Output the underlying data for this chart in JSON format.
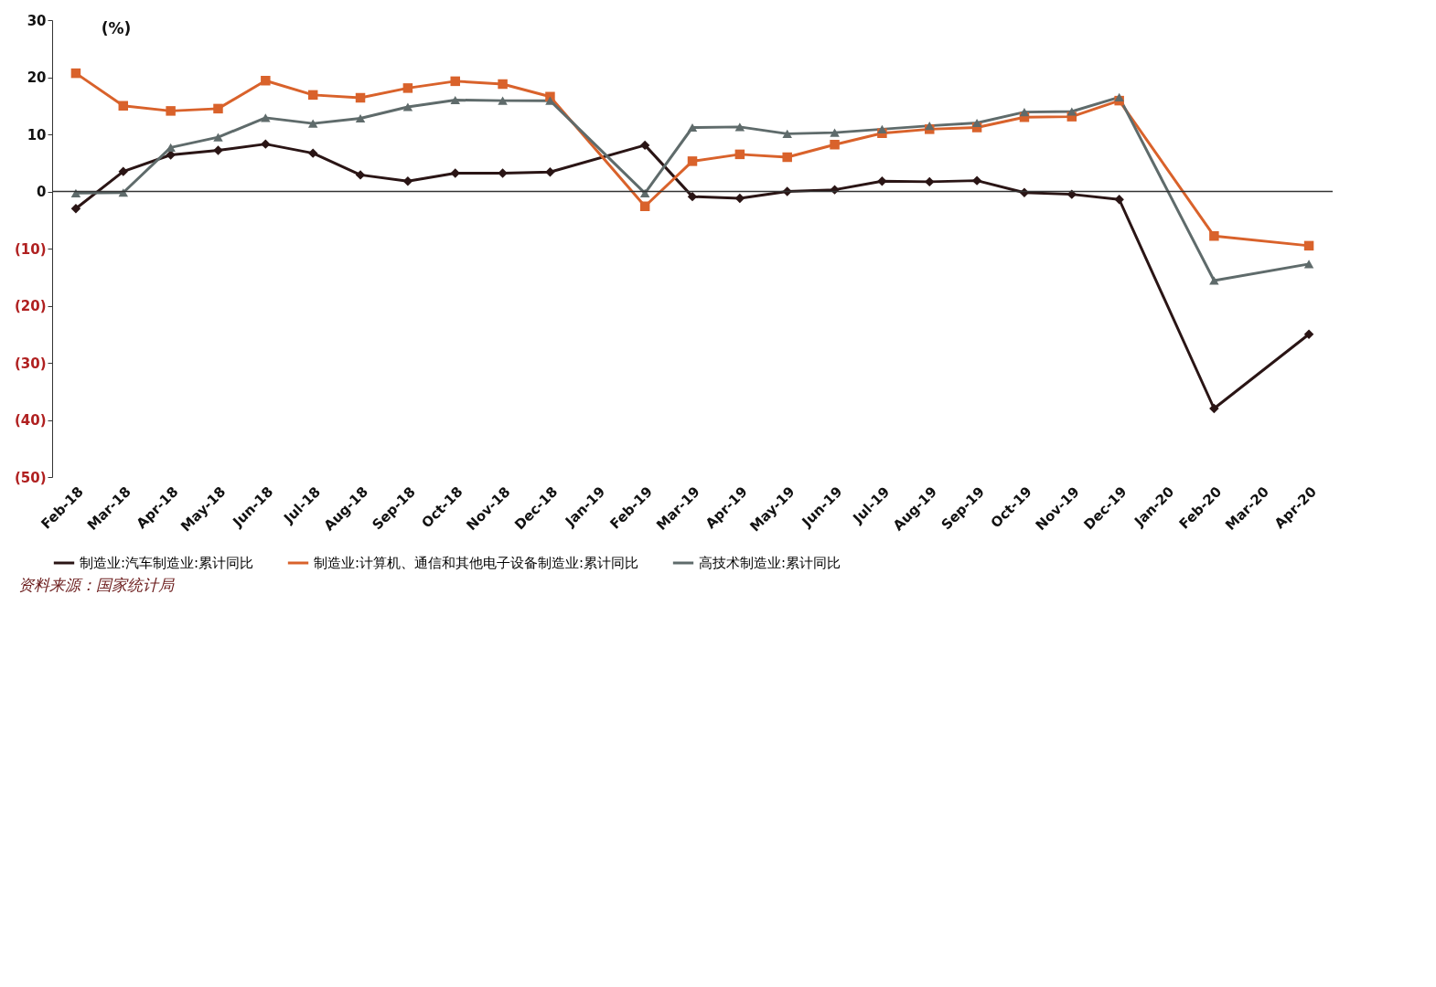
{
  "chart_data": {
    "type": "line",
    "ylabel": "(%)",
    "categories": [
      "Feb-18",
      "Mar-18",
      "Apr-18",
      "May-18",
      "Jun-18",
      "Jul-18",
      "Aug-18",
      "Sep-18",
      "Oct-18",
      "Nov-18",
      "Dec-18",
      "Jan-19",
      "Feb-19",
      "Mar-19",
      "Apr-19",
      "May-19",
      "Jun-19",
      "Jul-19",
      "Aug-19",
      "Sep-19",
      "Oct-19",
      "Nov-19",
      "Dec-19",
      "Jan-20",
      "Feb-20",
      "Mar-20",
      "Apr-20"
    ],
    "series": [
      {
        "name": "制造业:汽车制造业:累计同比",
        "color": "#2a1515",
        "marker": "diamond",
        "values": [
          -3,
          3.5,
          6.4,
          7.2,
          8.3,
          6.7,
          2.9,
          1.8,
          3.2,
          3.2,
          3.4,
          null,
          8.1,
          -0.9,
          -1.2,
          0,
          0.3,
          1.8,
          1.7,
          1.9,
          -0.2,
          -0.5,
          -1.4,
          null,
          -38,
          null,
          -25
        ]
      },
      {
        "name": "制造业:计算机、通信和其他电子设备制造业:累计同比",
        "color": "#d9622b",
        "marker": "square",
        "values": [
          20.7,
          15,
          14.1,
          14.5,
          19.4,
          16.9,
          16.4,
          18.1,
          19.3,
          18.8,
          16.6,
          null,
          -2.6,
          5.3,
          6.5,
          6,
          8.2,
          10.2,
          10.9,
          11.2,
          13,
          13.1,
          15.9,
          null,
          -7.8,
          null,
          -9.5
        ]
      },
      {
        "name": "高技术制造业:累计同比",
        "color": "#5f6b6b",
        "marker": "triangle",
        "values": [
          -0.3,
          -0.2,
          7.7,
          9.5,
          12.9,
          11.9,
          12.8,
          14.8,
          16,
          15.9,
          15.9,
          null,
          -0.3,
          11.2,
          11.3,
          10.1,
          10.3,
          10.9,
          11.5,
          12,
          13.9,
          14,
          16.5,
          null,
          -15.6,
          null,
          -12.7
        ]
      }
    ],
    "ylim": [
      -50,
      30
    ],
    "yticks": [
      30,
      20,
      10,
      0,
      {
        "value": -10,
        "label": "(10)"
      },
      {
        "value": -20,
        "label": "(20)"
      },
      {
        "value": -30,
        "label": "(30)"
      },
      {
        "value": -40,
        "label": "(40)"
      },
      {
        "value": -50,
        "label": "(50)"
      }
    ],
    "ref_lines": [
      {
        "axis": "y",
        "value": 0
      }
    ],
    "grid": false,
    "legend": "bottom",
    "line_style": "solid",
    "annotations": [
      "资料来源：国家统计局"
    ]
  }
}
